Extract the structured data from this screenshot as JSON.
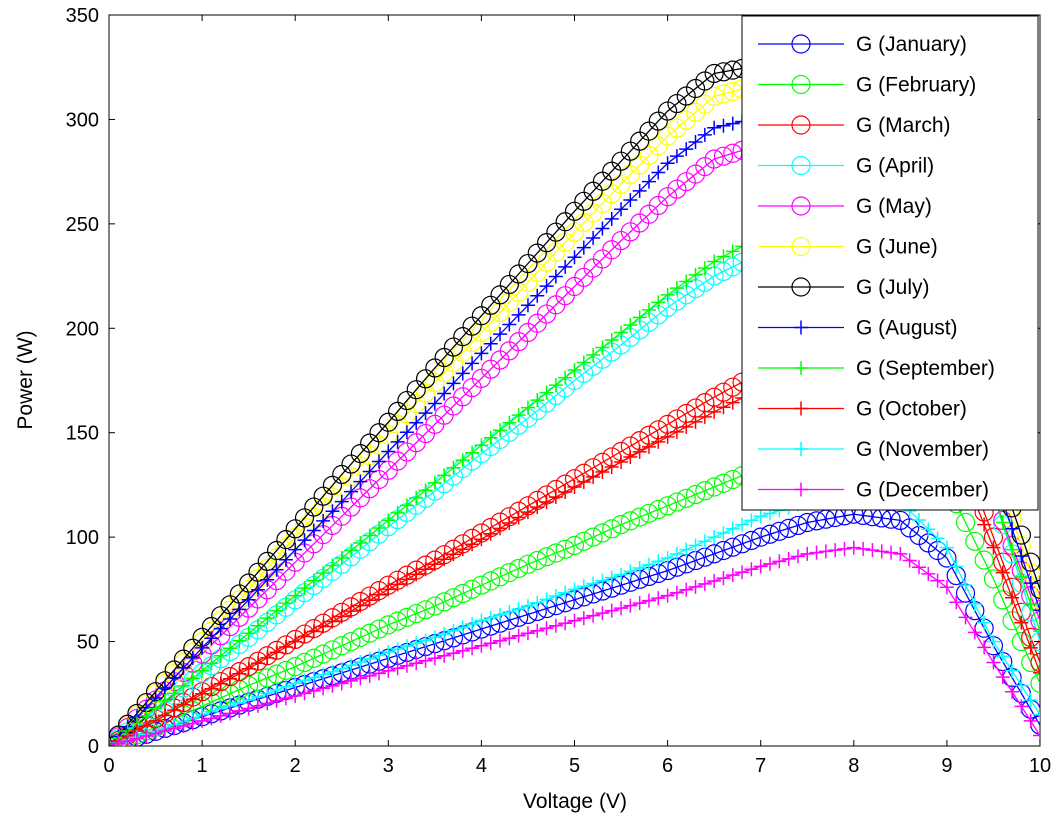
{
  "chart_data": {
    "type": "line",
    "title": "",
    "xlabel": "Voltage (V)",
    "ylabel": "Power (W)",
    "xlim": [
      0,
      10
    ],
    "ylim": [
      0,
      350
    ],
    "xticks": [
      0,
      1,
      2,
      3,
      4,
      5,
      6,
      7,
      8,
      9,
      10
    ],
    "yticks": [
      0,
      50,
      100,
      150,
      200,
      250,
      300,
      350
    ],
    "grid": false,
    "legend_position": "top-right",
    "x": [
      0,
      0.5,
      1,
      1.5,
      2,
      2.5,
      3,
      3.5,
      4,
      4.5,
      5,
      5.5,
      6,
      6.5,
      7,
      7.5,
      8,
      8.5,
      9,
      9.5,
      10
    ],
    "series": [
      {
        "name": "G (January)",
        "color": "#0000ff",
        "marker": "circle",
        "values": [
          0,
          7,
          14,
          21,
          28,
          35,
          42,
          49,
          56,
          63,
          70,
          77,
          84,
          92,
          100,
          107,
          111,
          108,
          90,
          48,
          10
        ]
      },
      {
        "name": "G (February)",
        "color": "#00ff00",
        "marker": "circle",
        "values": [
          0,
          9,
          19,
          29,
          38,
          48,
          58,
          67,
          77,
          87,
          96,
          106,
          115,
          124,
          133,
          141,
          146,
          144,
          125,
          80,
          30
        ]
      },
      {
        "name": "G (March)",
        "color": "#ff0000",
        "marker": "circle",
        "values": [
          0,
          13,
          26,
          38,
          51,
          64,
          77,
          89,
          102,
          115,
          128,
          141,
          154,
          167,
          179,
          189,
          194,
          190,
          160,
          100,
          40
        ]
      },
      {
        "name": "G (April)",
        "color": "#00ffff",
        "marker": "circle",
        "values": [
          0,
          17,
          35,
          52,
          70,
          87,
          105,
          122,
          140,
          157,
          175,
          192,
          210,
          225,
          236,
          240,
          238,
          220,
          180,
          120,
          50
        ]
      },
      {
        "name": "G (May)",
        "color": "#ff00ff",
        "marker": "circle",
        "values": [
          0,
          22,
          44,
          66,
          88,
          110,
          132,
          154,
          176,
          198,
          220,
          242,
          263,
          281,
          288,
          284,
          270,
          240,
          190,
          120,
          60
        ]
      },
      {
        "name": "G (June)",
        "color": "#ffff00",
        "marker": "circle",
        "values": [
          0,
          25,
          50,
          75,
          100,
          124,
          149,
          174,
          198,
          222,
          246,
          269,
          292,
          311,
          317,
          312,
          295,
          260,
          205,
          135,
          70
        ]
      },
      {
        "name": "G (July)",
        "color": "#000000",
        "marker": "circle",
        "values": [
          0,
          26,
          52,
          78,
          104,
          130,
          155,
          181,
          206,
          231,
          256,
          280,
          304,
          322,
          326,
          320,
          300,
          265,
          210,
          140,
          75
        ]
      },
      {
        "name": "G (August)",
        "color": "#0000ff",
        "marker": "plus",
        "values": [
          0,
          23,
          47,
          70,
          94,
          117,
          141,
          164,
          188,
          211,
          234,
          257,
          279,
          296,
          301,
          296,
          280,
          250,
          200,
          130,
          65
        ]
      },
      {
        "name": "G (September)",
        "color": "#00ff00",
        "marker": "plus",
        "values": [
          0,
          18,
          36,
          54,
          72,
          90,
          108,
          126,
          144,
          162,
          180,
          198,
          216,
          232,
          244,
          247,
          243,
          225,
          185,
          120,
          55
        ]
      },
      {
        "name": "G (October)",
        "color": "#ff0000",
        "marker": "plus",
        "values": [
          0,
          12,
          25,
          37,
          50,
          62,
          75,
          87,
          99,
          112,
          124,
          136,
          148,
          160,
          171,
          180,
          185,
          180,
          150,
          95,
          35
        ]
      },
      {
        "name": "G (November)",
        "color": "#00ffff",
        "marker": "plus",
        "values": [
          0,
          7,
          15,
          22,
          30,
          37,
          45,
          52,
          60,
          67,
          75,
          82,
          90,
          100,
          110,
          117,
          120,
          117,
          95,
          50,
          15
        ]
      },
      {
        "name": "G (December)",
        "color": "#ff00ff",
        "marker": "plus",
        "values": [
          0,
          6,
          12,
          18,
          24,
          30,
          36,
          42,
          48,
          54,
          60,
          66,
          72,
          79,
          86,
          92,
          95,
          92,
          76,
          40,
          5
        ]
      }
    ]
  }
}
